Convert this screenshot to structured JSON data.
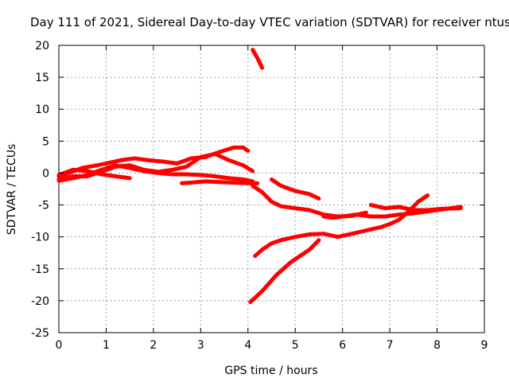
{
  "chart_data": {
    "type": "line",
    "title": "Day 111 of 2021, Sidereal Day-to-day VTEC variation (SDTVAR) for receiver ntus",
    "xlabel": "GPS time / hours",
    "ylabel": "SDTVAR / TECUs",
    "xlim": [
      0,
      9
    ],
    "ylim": [
      -25,
      20
    ],
    "xticks": [
      0,
      1,
      2,
      3,
      4,
      5,
      6,
      7,
      8,
      9
    ],
    "yticks": [
      20,
      15,
      10,
      5,
      0,
      -5,
      -10,
      -15,
      -20,
      -25
    ],
    "grid": true,
    "color": "#ff0000",
    "series": [
      {
        "name": "s1",
        "x": [
          0.0,
          0.3,
          0.6,
          0.9,
          1.2,
          1.5,
          1.8,
          2.1,
          2.4,
          2.7,
          3.0,
          3.3,
          3.6,
          3.9,
          4.1
        ],
        "y": [
          -1.0,
          -0.5,
          -0.5,
          0.2,
          1.0,
          1.2,
          0.5,
          0.2,
          0.5,
          1.0,
          2.5,
          3.0,
          2.0,
          1.2,
          0.3
        ]
      },
      {
        "name": "s2",
        "x": [
          0.0,
          0.2,
          0.5,
          0.8,
          1.0,
          1.3,
          1.6,
          1.9,
          2.2,
          2.5,
          2.8,
          3.1,
          3.4,
          3.7,
          3.9,
          4.0
        ],
        "y": [
          -0.5,
          0.0,
          0.8,
          1.2,
          1.5,
          2.0,
          2.3,
          2.0,
          1.8,
          1.5,
          2.3,
          2.5,
          3.3,
          4.0,
          4.0,
          3.5
        ]
      },
      {
        "name": "s3",
        "x": [
          0.0,
          0.3,
          0.6,
          0.9,
          1.2,
          1.5,
          1.8,
          2.1,
          2.4,
          2.7,
          3.0,
          3.3,
          3.6,
          3.9,
          4.1
        ],
        "y": [
          -1.2,
          -0.8,
          -0.3,
          0.5,
          1.2,
          0.8,
          0.3,
          0.0,
          -0.2,
          -0.2,
          -0.3,
          -0.5,
          -0.8,
          -1.0,
          -1.3
        ]
      },
      {
        "name": "s4",
        "x": [
          0.0,
          0.3,
          0.6,
          0.9,
          1.2,
          1.5
        ],
        "y": [
          -0.3,
          0.5,
          0.3,
          -0.2,
          -0.5,
          -0.8
        ]
      },
      {
        "name": "s5",
        "x": [
          2.6,
          2.8,
          3.1,
          3.4,
          3.7,
          4.0,
          4.2
        ],
        "y": [
          -1.6,
          -1.5,
          -1.3,
          -1.4,
          -1.5,
          -1.6,
          -1.6
        ]
      },
      {
        "name": "s6",
        "x": [
          4.1,
          4.3,
          4.5,
          4.7,
          5.0,
          5.3,
          5.6,
          5.9,
          6.2,
          6.5
        ],
        "y": [
          -2.0,
          -3.0,
          -4.5,
          -5.2,
          -5.5,
          -5.8,
          -6.5,
          -6.8,
          -6.7,
          -6.2
        ]
      },
      {
        "name": "s7",
        "x": [
          4.5,
          4.7,
          5.0,
          5.3,
          5.5
        ],
        "y": [
          -1.0,
          -2.0,
          -2.8,
          -3.3,
          -4.0
        ]
      },
      {
        "name": "s8",
        "x": [
          5.6,
          5.8,
          6.0,
          6.3,
          6.6,
          6.9,
          7.2,
          7.5,
          7.8,
          8.1,
          8.5
        ],
        "y": [
          -6.8,
          -7.0,
          -6.8,
          -6.5,
          -6.8,
          -6.8,
          -6.5,
          -6.3,
          -6.0,
          -5.7,
          -5.3
        ]
      },
      {
        "name": "s9",
        "x": [
          6.6,
          6.9,
          7.2,
          7.5,
          7.8,
          8.1,
          8.5
        ],
        "y": [
          -5.0,
          -5.5,
          -5.3,
          -5.8,
          -5.8,
          -5.6,
          -5.5
        ]
      },
      {
        "name": "s10",
        "x": [
          4.15,
          4.3,
          4.5,
          4.7,
          5.0,
          5.3,
          5.6,
          5.9,
          6.2,
          6.5,
          6.8,
          7.0,
          7.2,
          7.4,
          7.6,
          7.8
        ],
        "y": [
          -13.0,
          -12.0,
          -11.0,
          -10.5,
          -10.0,
          -9.6,
          -9.5,
          -10.0,
          -9.5,
          -9.0,
          -8.5,
          -8.0,
          -7.3,
          -6.0,
          -4.5,
          -3.5
        ]
      },
      {
        "name": "s11",
        "x": [
          4.05,
          4.3,
          4.6,
          4.9,
          5.1,
          5.3,
          5.5
        ],
        "y": [
          -20.2,
          -18.5,
          -16.0,
          -14.0,
          -13.0,
          -12.0,
          -10.5
        ]
      },
      {
        "name": "s12",
        "x": [
          4.1,
          4.2,
          4.3
        ],
        "y": [
          19.3,
          18.0,
          16.5
        ]
      }
    ]
  }
}
